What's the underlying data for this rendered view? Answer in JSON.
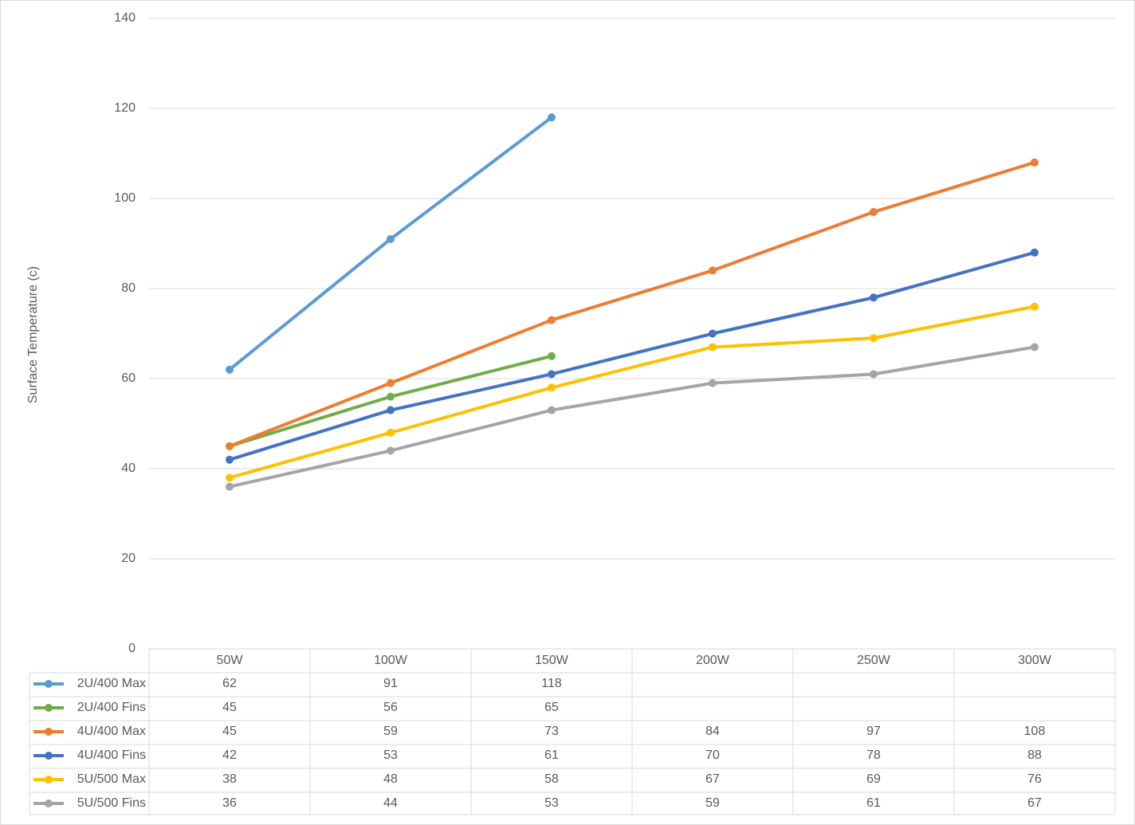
{
  "chart_data": {
    "type": "line",
    "y_label": "Surface Temperature (c)",
    "categories": [
      "50W",
      "100W",
      "150W",
      "200W",
      "250W",
      "300W"
    ],
    "series": [
      {
        "name": "2U/400 Max",
        "color": "#5b9bd5",
        "values": [
          62,
          91,
          118,
          null,
          null,
          null
        ]
      },
      {
        "name": "2U/400 Fins",
        "color": "#70ad47",
        "values": [
          45,
          56,
          65,
          null,
          null,
          null
        ]
      },
      {
        "name": "4U/400 Max",
        "color": "#ed7d31",
        "values": [
          45,
          59,
          73,
          84,
          97,
          108
        ]
      },
      {
        "name": "4U/400 Fins",
        "color": "#4472c4",
        "values": [
          42,
          53,
          61,
          70,
          78,
          88
        ]
      },
      {
        "name": "5U/500 Max",
        "color": "#ffc000",
        "values": [
          38,
          48,
          58,
          67,
          69,
          76
        ]
      },
      {
        "name": "5U/500 Fins",
        "color": "#a5a5a5",
        "values": [
          36,
          44,
          53,
          59,
          61,
          67
        ]
      }
    ],
    "ylim": [
      0,
      140
    ],
    "yticks": [
      0,
      20,
      40,
      60,
      80,
      100,
      120,
      140
    ],
    "grid": true,
    "data_table": true
  }
}
